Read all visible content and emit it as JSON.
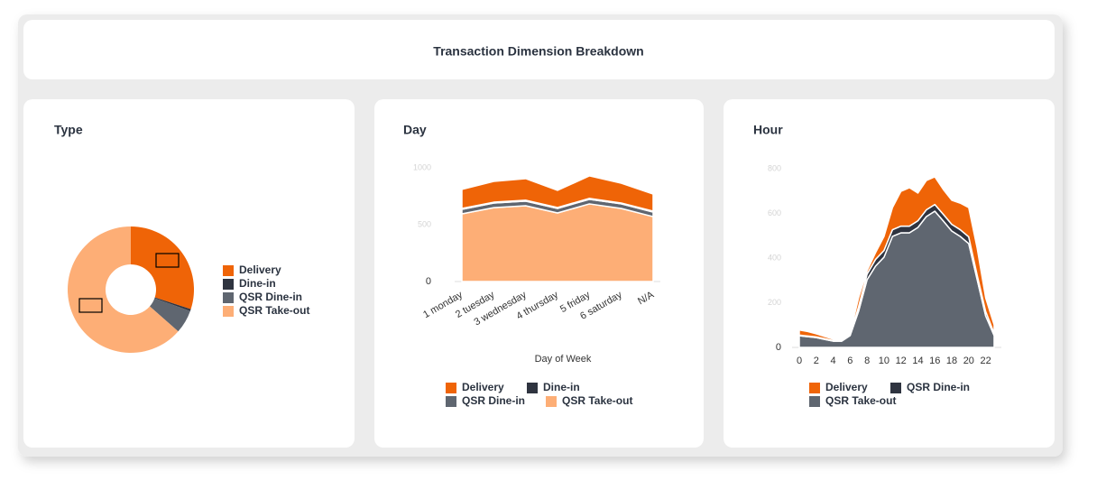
{
  "title": "Transaction Dimension Breakdown",
  "chart_data": [
    {
      "type": "pie",
      "donut": true,
      "title": "Type",
      "categories": [
        "Delivery",
        "Dine-in",
        "QSR Dine-in",
        "QSR Take-out"
      ],
      "values": [
        30,
        0.5,
        6,
        63.5
      ],
      "colors": [
        "#ef6407",
        "#2f3440",
        "#5f6670",
        "#fdae76"
      ]
    },
    {
      "type": "area",
      "stacked": true,
      "title": "Day",
      "x_label": "Day of Week",
      "categories": [
        "1 monday",
        "2 tuesday",
        "3 wednesday",
        "4 thursday",
        "5 friday",
        "6 saturday",
        "N/A"
      ],
      "series": [
        {
          "name": "Delivery",
          "color": "#ef6407",
          "values": [
            167,
            183,
            190,
            151,
            198,
            174,
            151
          ]
        },
        {
          "name": "Dine-in",
          "color": "#2f3440",
          "values": [
            8,
            8,
            8,
            8,
            8,
            8,
            8
          ]
        },
        {
          "name": "QSR Dine-in",
          "color": "#5f6670",
          "values": [
            40,
            40,
            40,
            40,
            40,
            40,
            40
          ]
        },
        {
          "name": "QSR Take-out",
          "color": "#fdae76",
          "values": [
            595,
            650,
            667,
            603,
            683,
            643,
            571
          ]
        }
      ],
      "ylim": [
        0,
        1000
      ],
      "yticks": [
        0,
        500,
        1000
      ]
    },
    {
      "type": "area",
      "stacked": true,
      "title": "Hour",
      "x": [
        0,
        1,
        2,
        3,
        4,
        5,
        6,
        7,
        8,
        9,
        10,
        11,
        12,
        13,
        14,
        15,
        16,
        17,
        18,
        19,
        20,
        21,
        22,
        23
      ],
      "xlim": [
        0,
        23
      ],
      "xticks": [
        0,
        2,
        4,
        6,
        8,
        10,
        12,
        14,
        16,
        18,
        20,
        22
      ],
      "series": [
        {
          "name": "Delivery",
          "color": "#ef6407",
          "values": [
            23,
            20,
            14,
            10,
            6,
            4,
            6,
            40,
            15,
            30,
            63,
            99,
            156,
            172,
            124,
            131,
            124,
            111,
            108,
            119,
            131,
            121,
            61,
            38
          ]
        },
        {
          "name": "QSR Dine-in",
          "color": "#2f3440",
          "values": [
            3,
            3,
            3,
            3,
            3,
            3,
            3,
            20,
            25,
            30,
            30,
            30,
            30,
            30,
            30,
            30,
            30,
            30,
            30,
            30,
            30,
            20,
            20,
            10
          ]
        },
        {
          "name": "QSR Take-out",
          "color": "#5f6670",
          "values": [
            52,
            48,
            44,
            36,
            28,
            28,
            53,
            162,
            303,
            364,
            404,
            497,
            513,
            513,
            537,
            586,
            610,
            566,
            521,
            497,
            465,
            303,
            141,
            53
          ]
        }
      ],
      "ylim": [
        0,
        800
      ],
      "yticks": [
        0,
        200,
        400,
        600,
        800
      ]
    }
  ]
}
